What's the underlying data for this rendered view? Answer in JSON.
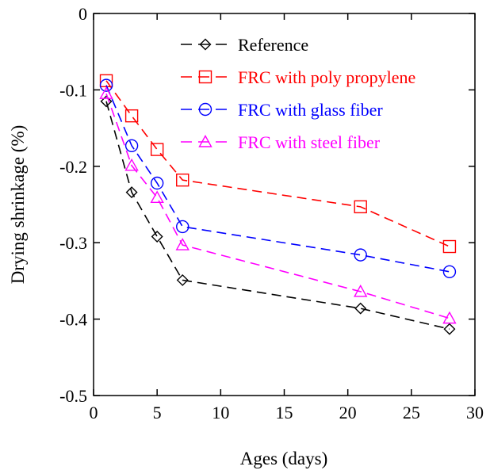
{
  "chart_data": {
    "type": "line",
    "title": "",
    "xlabel": "Ages (days)",
    "ylabel": "Drying shrinkage (%)",
    "xlim": [
      0,
      30
    ],
    "ylim": [
      -0.5,
      0
    ],
    "xticks": [
      0,
      5,
      10,
      15,
      20,
      25,
      30
    ],
    "yticks": [
      0,
      -0.1,
      -0.2,
      -0.3,
      -0.4,
      -0.5
    ],
    "xtick_labels": [
      "0",
      "5",
      "10",
      "15",
      "20",
      "25",
      "30"
    ],
    "ytick_labels": [
      "0",
      "-0.1",
      "-0.2",
      "-0.3",
      "-0.4",
      "-0.5"
    ],
    "grid": false,
    "legend_position": "top-right",
    "series": [
      {
        "name": "Reference",
        "color": "#000000",
        "marker": "diamond",
        "x": [
          1,
          3,
          5,
          7,
          21,
          28
        ],
        "y": [
          -0.115,
          -0.234,
          -0.292,
          -0.349,
          -0.386,
          -0.413
        ]
      },
      {
        "name": "FRC with poly propylene",
        "color": "#ff0000",
        "marker": "square",
        "x": [
          1,
          3,
          5,
          7,
          21,
          28
        ],
        "y": [
          -0.088,
          -0.134,
          -0.178,
          -0.218,
          -0.253,
          -0.305
        ]
      },
      {
        "name": "FRC with glass fiber",
        "color": "#0000ff",
        "marker": "circle",
        "x": [
          1,
          3,
          5,
          7,
          21,
          28
        ],
        "y": [
          -0.094,
          -0.173,
          -0.222,
          -0.279,
          -0.316,
          -0.338
        ]
      },
      {
        "name": "FRC with steel fiber",
        "color": "#ff00ff",
        "marker": "triangle",
        "x": [
          1,
          3,
          5,
          7,
          21,
          28
        ],
        "y": [
          -0.105,
          -0.199,
          -0.241,
          -0.303,
          -0.364,
          -0.399
        ]
      }
    ]
  }
}
